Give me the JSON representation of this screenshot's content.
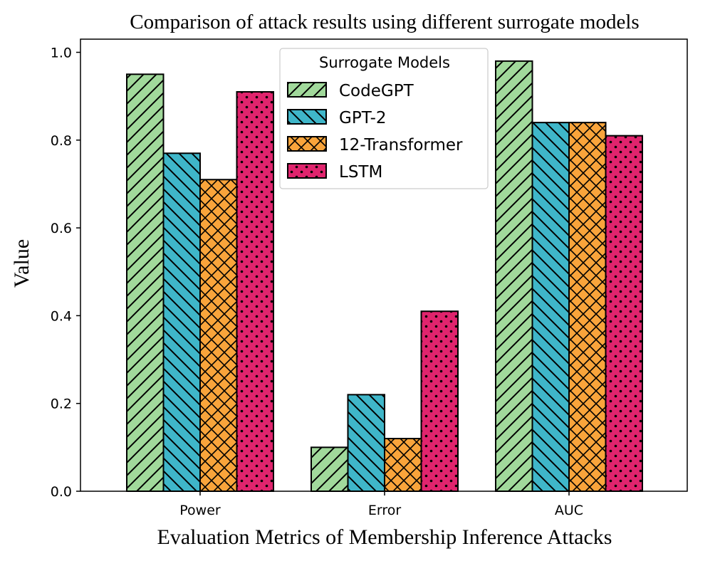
{
  "chart_data": {
    "type": "bar",
    "title": "Comparison of attack results using different surrogate models",
    "xlabel": "Evaluation Metrics of Membership Inference Attacks",
    "ylabel": "Value",
    "categories": [
      "Power",
      "Error",
      "AUC"
    ],
    "ylim": [
      0,
      1.03
    ],
    "yticks": [
      "0.0",
      "0.2",
      "0.4",
      "0.6",
      "0.8",
      "1.0"
    ],
    "grid": false,
    "legend": {
      "title": "Surrogate Models",
      "placement": "upper-center"
    },
    "series": [
      {
        "name": "CodeGPT",
        "values": [
          0.95,
          0.1,
          0.98
        ],
        "color": "#a1d99b",
        "hatch": "forward-diagonal"
      },
      {
        "name": "GPT-2",
        "values": [
          0.77,
          0.22,
          0.84
        ],
        "color": "#3fb6c9",
        "hatch": "back-diagonal"
      },
      {
        "name": "12-Transformer",
        "values": [
          0.71,
          0.12,
          0.84
        ],
        "color": "#f9a43b",
        "hatch": "crosshatch"
      },
      {
        "name": "LSTM",
        "values": [
          0.91,
          0.41,
          0.81
        ],
        "color": "#e0246d",
        "hatch": "dots"
      }
    ]
  }
}
